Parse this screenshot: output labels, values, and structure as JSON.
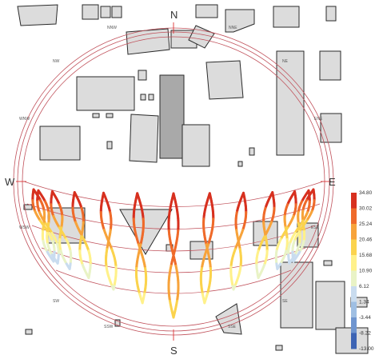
{
  "compass": {
    "north": "N",
    "south": "S",
    "east": "E",
    "west": "W"
  },
  "direction_labels": {
    "nnw": "NNW",
    "nne": "NNE",
    "nw": "NW",
    "ne": "NE",
    "wnw": "WNW",
    "ene": "ENE",
    "wsw": "WSW",
    "ese": "ESE",
    "sw": "SW",
    "se": "SE",
    "ssw": "SSW",
    "sse": "SSE"
  },
  "legend": {
    "ticks": [
      "34.80",
      "30.02",
      "25.24",
      "20.46",
      "15.68",
      "10.90",
      "6.12",
      "1.34",
      "-3.44",
      "-8.22",
      "-13.00"
    ],
    "colors": [
      "#d7301f",
      "#ef6a2a",
      "#f7a33b",
      "#fbd34d",
      "#fff18a",
      "#e9f3c6",
      "#c9dcef",
      "#9fbfe3",
      "#6f95cf",
      "#3d64b4"
    ]
  },
  "colors": {
    "orbit": "#c0505a",
    "building_fill": "#dcdcdc",
    "building_dark": "#a9a9a9",
    "outline": "#2a2a2a"
  }
}
